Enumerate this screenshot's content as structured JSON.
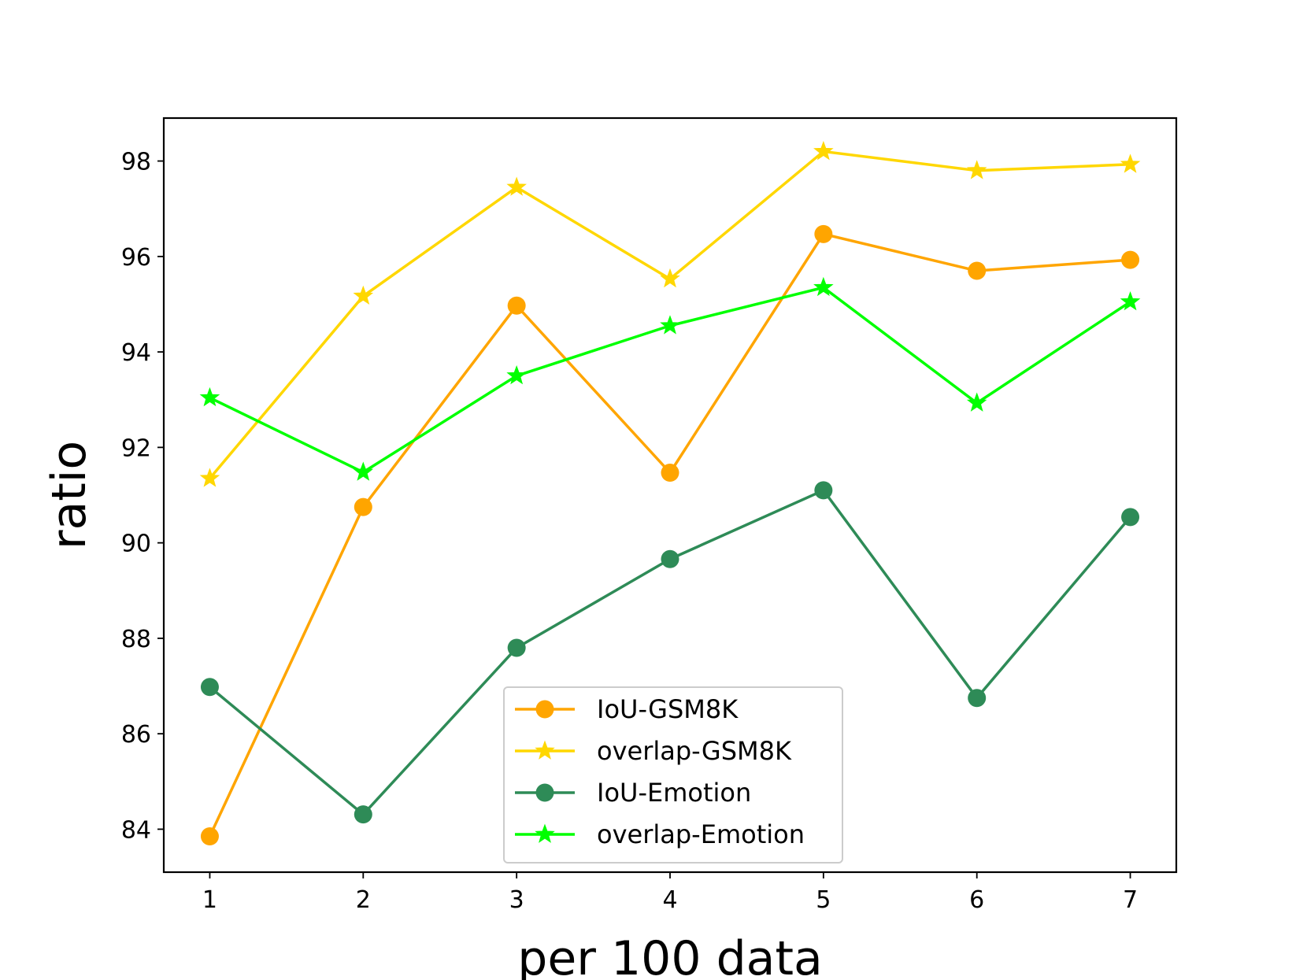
{
  "chart_data": {
    "type": "line",
    "title": "",
    "xlabel": "per 100 data",
    "ylabel": "ratio",
    "x": [
      1,
      2,
      3,
      4,
      5,
      6,
      7
    ],
    "xlim": [
      0.7,
      7.3
    ],
    "ylim": [
      83.1,
      98.9
    ],
    "xticks": [
      1,
      2,
      3,
      4,
      5,
      6,
      7
    ],
    "yticks": [
      84,
      86,
      88,
      90,
      92,
      94,
      96,
      98
    ],
    "grid": false,
    "legend_position": "lower-center",
    "series": [
      {
        "name": "IoU-GSM8K",
        "color": "#ffa500",
        "marker": "circle",
        "values": [
          83.85,
          90.75,
          94.97,
          91.47,
          96.47,
          95.7,
          95.93
        ]
      },
      {
        "name": "overlap-GSM8K",
        "color": "#ffd700",
        "marker": "star",
        "values": [
          91.35,
          95.17,
          97.45,
          95.53,
          98.2,
          97.8,
          97.93
        ]
      },
      {
        "name": "IoU-Emotion",
        "color": "#2e8b57",
        "marker": "circle",
        "values": [
          86.98,
          84.31,
          87.8,
          89.66,
          91.1,
          86.75,
          90.54
        ]
      },
      {
        "name": "overlap-Emotion",
        "color": "#00ff00",
        "marker": "star",
        "values": [
          93.04,
          91.48,
          93.5,
          94.55,
          95.35,
          92.93,
          95.05
        ]
      }
    ]
  }
}
